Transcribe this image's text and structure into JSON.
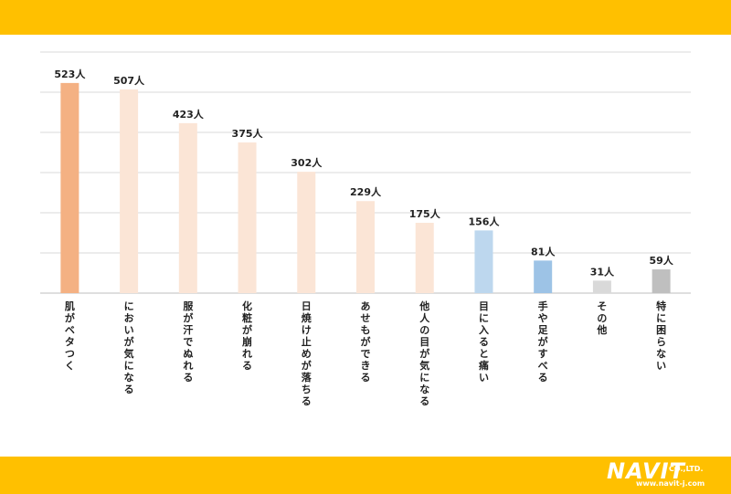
{
  "chart_data": {
    "type": "bar",
    "title": "",
    "xlabel": "",
    "ylabel": "",
    "ylim": [
      0,
      600
    ],
    "grid": true,
    "unit": "人",
    "categories": [
      "肌がベタつく",
      "においが気になる",
      "服が汗でぬれる",
      "化粧が崩れる",
      "日焼け止めが落ちる",
      "あせもができる",
      "他人の目が気になる",
      "目に入ると痛い",
      "手や足がすべる",
      "その他",
      "特に困らない"
    ],
    "values": [
      523,
      507,
      423,
      375,
      302,
      229,
      175,
      156,
      81,
      31,
      59
    ],
    "value_labels": [
      "523人",
      "507人",
      "423人",
      "375人",
      "302人",
      "229人",
      "175人",
      "156人",
      "81人",
      "31人",
      "59人"
    ],
    "bar_colors": [
      "#F4B183",
      "#FBE5D6",
      "#FBE5D6",
      "#FBE5D6",
      "#FBE5D6",
      "#FBE5D6",
      "#FBE5D6",
      "#BDD7EE",
      "#9DC3E6",
      "#D9D9D9",
      "#BFBFBF"
    ]
  },
  "colors": {
    "band": "#FFC000",
    "grid": "#D9D9D9",
    "axis": "#BFBFBF",
    "text": "#222222"
  },
  "logo": {
    "main": "NAVIT",
    "suffix": "CO.,LTD.",
    "url": "www.navit-j.com"
  }
}
